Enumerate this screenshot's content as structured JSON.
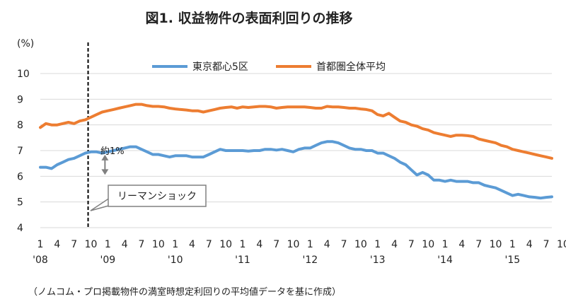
{
  "chart_data": {
    "type": "line",
    "title": "図1. 収益物件の表面利回りの推移",
    "ylabel": "(%)",
    "ylim": [
      4,
      10
    ],
    "yticks": [
      4,
      5,
      6,
      7,
      8,
      9,
      10
    ],
    "x_start": "2008-01",
    "month_tick_labels": [
      "1",
      "4",
      "7",
      "10",
      "1",
      "4",
      "7",
      "10",
      "1",
      "4",
      "7",
      "10",
      "1",
      "4",
      "7",
      "10",
      "1",
      "4",
      "7",
      "10",
      "1",
      "4",
      "7",
      "10",
      "1",
      "4",
      "7",
      "10",
      "1",
      "4",
      "7",
      "10"
    ],
    "year_labels": [
      "'08",
      "'09",
      "'10",
      "'11",
      "'12",
      "'13",
      "'14",
      "'15"
    ],
    "grid": "horizontal",
    "legend": "top",
    "series": [
      {
        "name": "東京都心5区",
        "color": "#5B9BD5",
        "values": [
          6.35,
          6.35,
          6.3,
          6.45,
          6.55,
          6.65,
          6.7,
          6.8,
          6.9,
          6.95,
          6.95,
          6.9,
          6.95,
          7.0,
          7.05,
          7.1,
          7.15,
          7.15,
          7.05,
          6.95,
          6.85,
          6.85,
          6.8,
          6.75,
          6.8,
          6.8,
          6.8,
          6.75,
          6.75,
          6.75,
          6.85,
          6.95,
          7.05,
          7.0,
          7.0,
          7.0,
          7.0,
          6.98,
          7.0,
          7.0,
          7.05,
          7.05,
          7.02,
          7.05,
          7.0,
          6.95,
          7.05,
          7.1,
          7.1,
          7.2,
          7.3,
          7.35,
          7.35,
          7.3,
          7.2,
          7.1,
          7.05,
          7.05,
          7.0,
          7.0,
          6.9,
          6.9,
          6.8,
          6.7,
          6.55,
          6.45,
          6.25,
          6.05,
          6.15,
          6.05,
          5.85,
          5.85,
          5.8,
          5.85,
          5.8,
          5.8,
          5.8,
          5.75,
          5.75,
          5.65,
          5.6,
          5.55,
          5.45,
          5.35,
          5.25,
          5.3,
          5.25,
          5.2,
          5.18,
          5.15,
          5.18,
          5.2
        ]
      },
      {
        "name": "首都圏全体平均",
        "color": "#ED7D31",
        "values": [
          7.9,
          8.05,
          8.0,
          8.0,
          8.05,
          8.1,
          8.05,
          8.15,
          8.2,
          8.3,
          8.4,
          8.5,
          8.55,
          8.6,
          8.65,
          8.7,
          8.75,
          8.8,
          8.8,
          8.75,
          8.72,
          8.72,
          8.7,
          8.65,
          8.62,
          8.6,
          8.58,
          8.55,
          8.55,
          8.5,
          8.55,
          8.6,
          8.65,
          8.68,
          8.7,
          8.65,
          8.7,
          8.68,
          8.7,
          8.72,
          8.72,
          8.7,
          8.65,
          8.68,
          8.7,
          8.7,
          8.7,
          8.7,
          8.68,
          8.65,
          8.65,
          8.72,
          8.7,
          8.7,
          8.68,
          8.65,
          8.65,
          8.62,
          8.6,
          8.55,
          8.4,
          8.35,
          8.45,
          8.3,
          8.15,
          8.1,
          8.0,
          7.95,
          7.85,
          7.8,
          7.7,
          7.65,
          7.6,
          7.55,
          7.6,
          7.6,
          7.58,
          7.55,
          7.45,
          7.4,
          7.35,
          7.3,
          7.2,
          7.15,
          7.05,
          7.0,
          6.95,
          6.9,
          6.85,
          6.8,
          6.75,
          6.7
        ]
      }
    ],
    "annotations": {
      "crisis_label": "リーマンショック",
      "gap_label": "約1%"
    },
    "source_note": "（ノムコム・プロ掲載物件の満室時想定利回りの平均値データを基に作成）"
  }
}
